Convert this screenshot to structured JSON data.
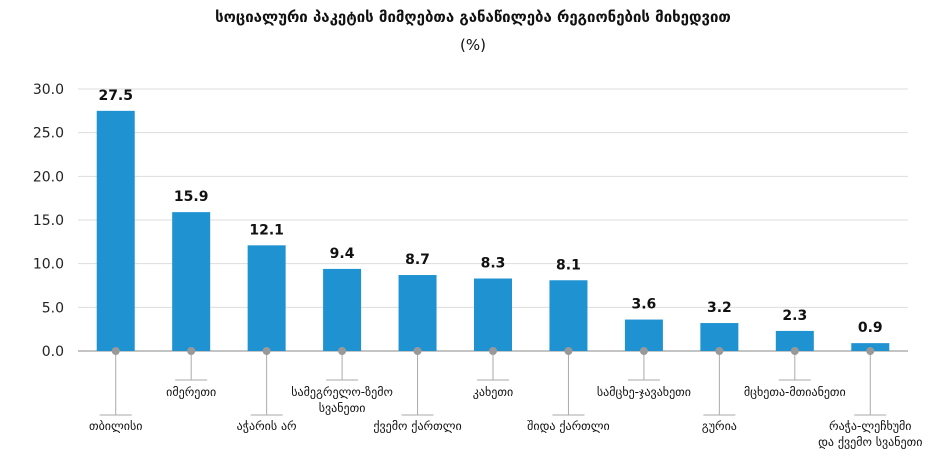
{
  "chart_data": {
    "type": "bar",
    "title": "სოციალური პაკეტის მიმღებთა განაწილება რეგიონების მიხედვით",
    "subtitle": "(%)",
    "xlabel": "",
    "ylabel": "",
    "ylim": [
      0,
      30
    ],
    "yticks": [
      "0.0",
      "5.0",
      "10.0",
      "15.0",
      "20.0",
      "25.0",
      "30.0"
    ],
    "grid": true,
    "bar_color": "#1f93d2",
    "categories": [
      [
        "თბილისი"
      ],
      [
        "იმერეთი"
      ],
      [
        "აჭარის არ"
      ],
      [
        "სამეგრელო-ზემო",
        "სვანეთი"
      ],
      [
        "ქვემო ქართლი"
      ],
      [
        "კახეთი"
      ],
      [
        "შიდა ქართლი"
      ],
      [
        "სამცხე-ჯავახეთი"
      ],
      [
        "გურია"
      ],
      [
        "მცხეთა-მთიანეთი"
      ],
      [
        "რაჭა-ლეჩხუმი",
        "და ქვემო სვანეთი"
      ]
    ],
    "values": [
      27.5,
      15.9,
      12.1,
      9.4,
      8.7,
      8.3,
      8.1,
      3.6,
      3.2,
      2.3,
      0.9
    ],
    "value_labels": [
      "27.5",
      "15.9",
      "12.1",
      "9.4",
      "8.7",
      "8.3",
      "8.1",
      "3.6",
      "3.2",
      "2.3",
      "0.9"
    ]
  }
}
